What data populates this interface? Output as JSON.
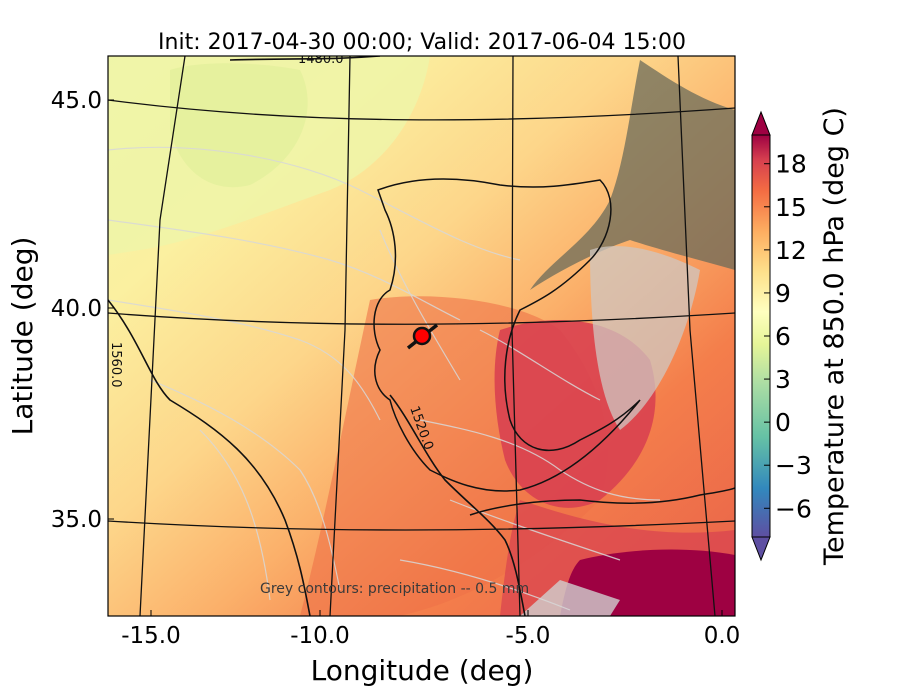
{
  "title": "Init: 2017-04-30 00:00; Valid: 2017-06-04 15:00",
  "chart_data": {
    "type": "heatmap",
    "xlabel": "Longitude (deg)",
    "ylabel": "Latitude (deg)",
    "xlim": [
      -16.0,
      0.0
    ],
    "ylim": [
      32.6,
      46.0
    ],
    "x_ticks": [
      {
        "value": -15.0,
        "label": "-15.0"
      },
      {
        "value": -10.0,
        "label": "-10.0"
      },
      {
        "value": -5.0,
        "label": "-5.0"
      },
      {
        "value": 0.0,
        "label": "0.0"
      }
    ],
    "y_ticks": [
      {
        "value": 45.0,
        "label": "45.0"
      },
      {
        "value": 40.0,
        "label": "40.0"
      },
      {
        "value": 35.0,
        "label": "35.0"
      }
    ],
    "colorbar": {
      "label": "Temperature at 850.0 hPa (deg C)",
      "range": [
        -8,
        20
      ],
      "ticks": [
        {
          "value": 18,
          "label": "18"
        },
        {
          "value": 15,
          "label": "15"
        },
        {
          "value": 12,
          "label": "12"
        },
        {
          "value": 9,
          "label": "9"
        },
        {
          "value": 6,
          "label": "6"
        },
        {
          "value": 3,
          "label": "3"
        },
        {
          "value": 0,
          "label": "0"
        },
        {
          "value": -3,
          "label": "−3"
        },
        {
          "value": -6,
          "label": "−6"
        }
      ]
    },
    "contour_labels": [
      {
        "text": "1480.0",
        "value": 1480
      },
      {
        "text": "1560.0",
        "value": 1560
      },
      {
        "text": "1520.0",
        "value": 1520
      }
    ],
    "annotation": "Grey contours: precipitation -- 0.5 mm",
    "marker": {
      "lon": -7.8,
      "lat": 39.3,
      "color": "#ff0000"
    }
  },
  "colors": {
    "cold": "#5e4fa2",
    "cool": "#3288bd",
    "mild": "#abdda4",
    "neutral": "#ffffbf",
    "warm": "#fdae61",
    "hot": "#f46d43",
    "hotter": "#d53e4f",
    "hottest": "#9e0142"
  }
}
